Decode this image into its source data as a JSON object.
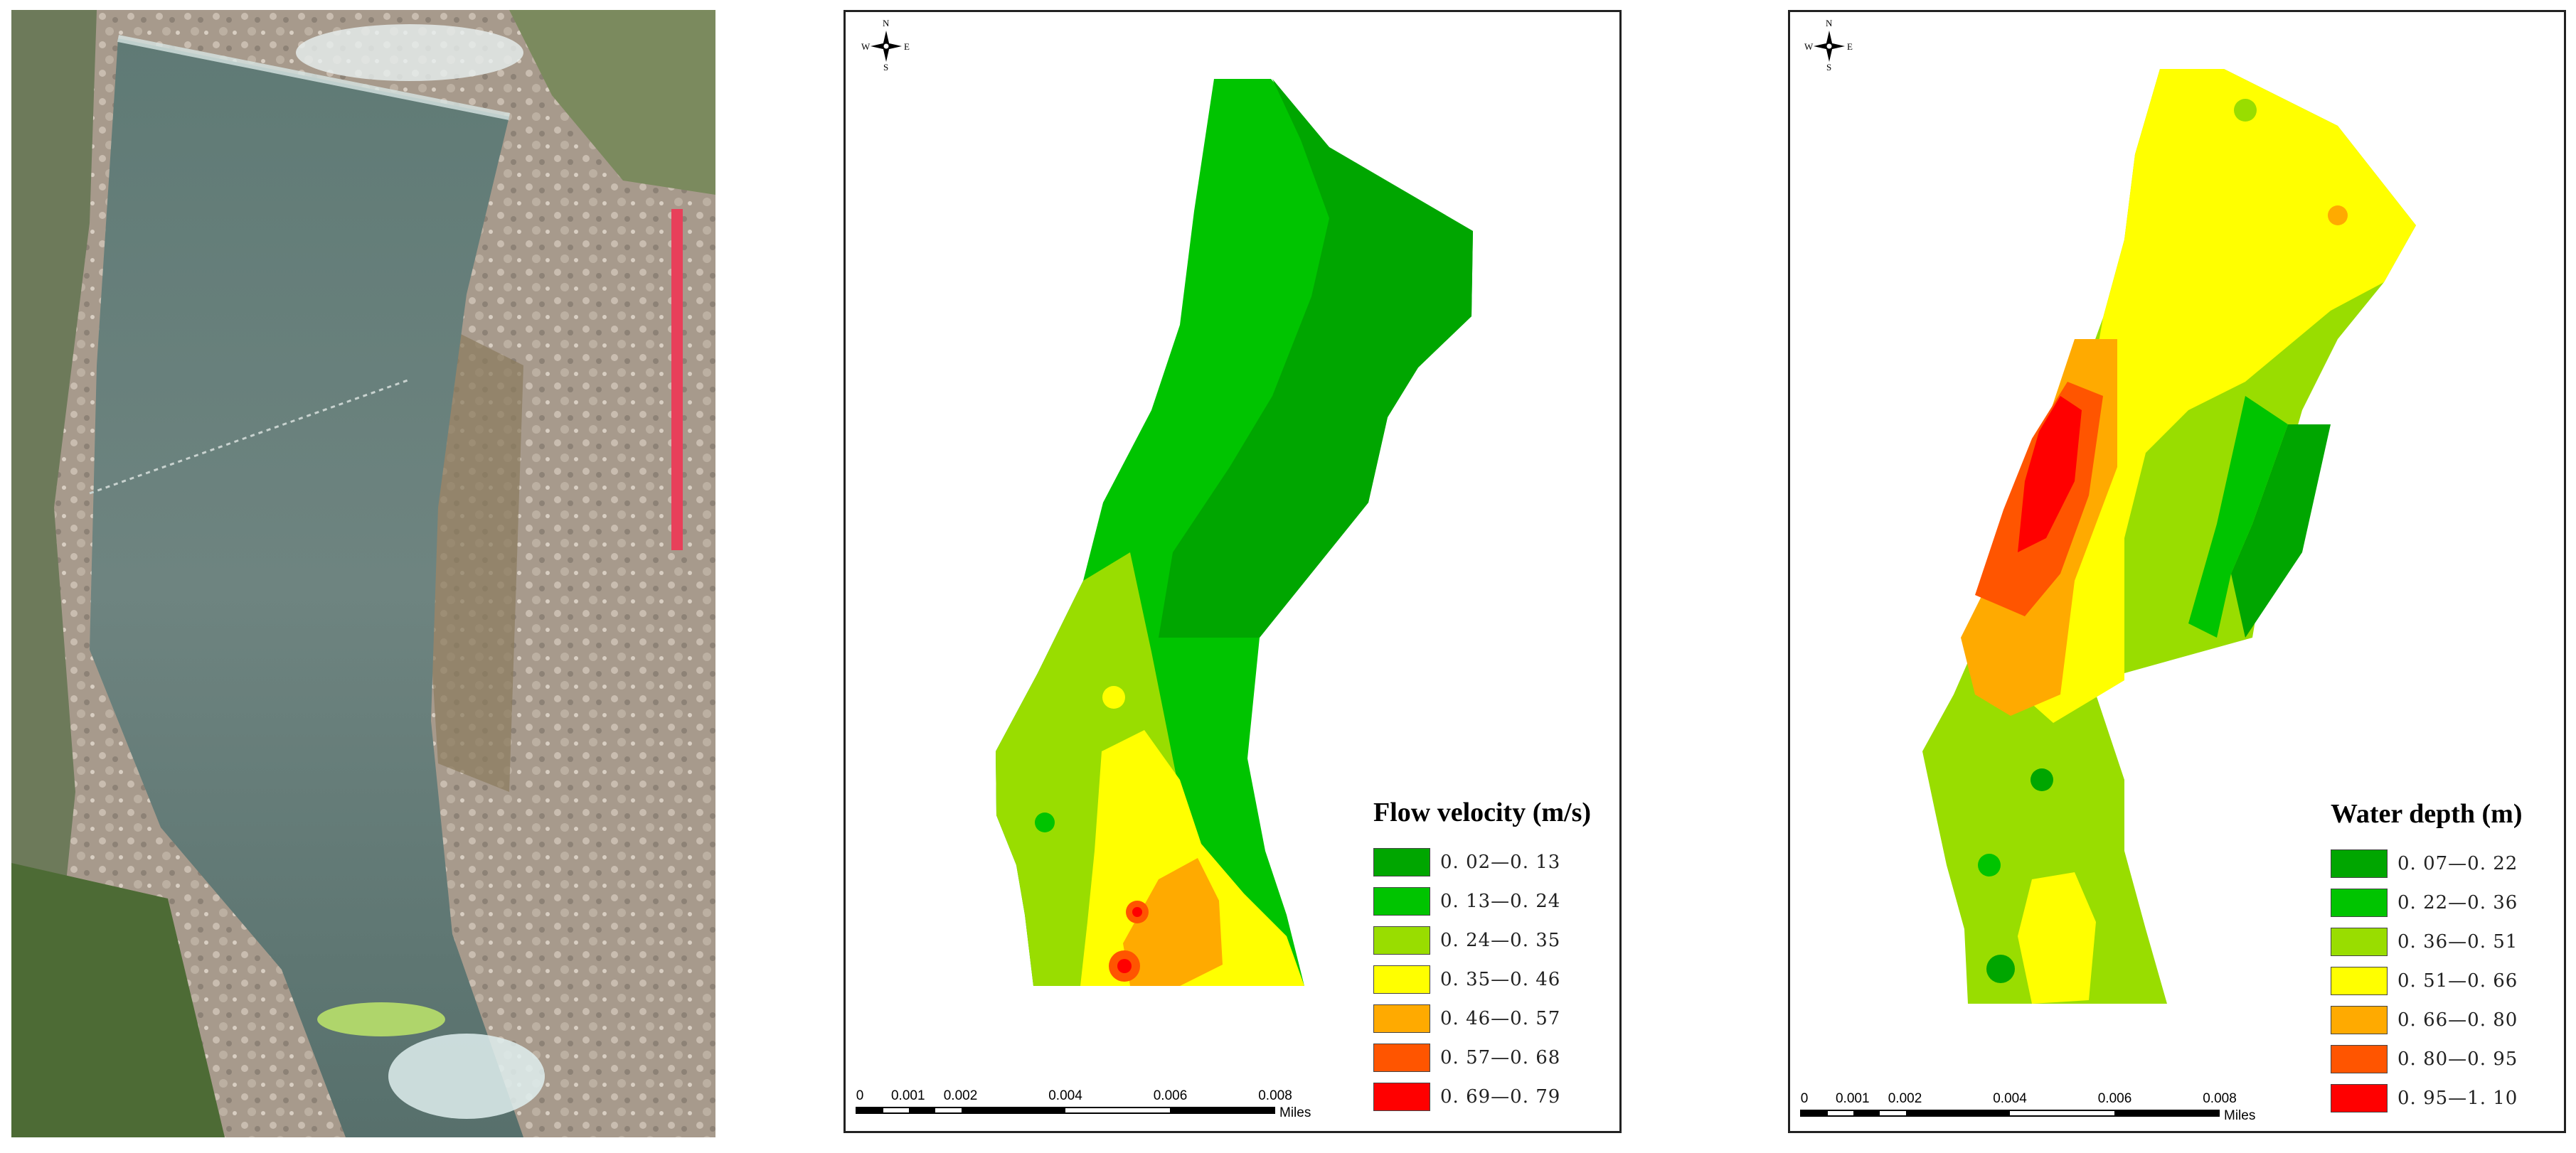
{
  "compass": {
    "n": "N",
    "s": "S",
    "w": "W",
    "e": "E"
  },
  "velocity_map": {
    "legend_title": "Flow velocity (m/s)",
    "classes": [
      {
        "label": "0. 02—0. 13",
        "color": "#00a600"
      },
      {
        "label": "0. 13—0. 24",
        "color": "#00c400"
      },
      {
        "label": "0. 24—0. 35",
        "color": "#99dd00"
      },
      {
        "label": "0. 35—0. 46",
        "color": "#ffff00"
      },
      {
        "label": "0. 46—0. 57",
        "color": "#ffaa00"
      },
      {
        "label": "0. 57—0. 68",
        "color": "#ff5500"
      },
      {
        "label": "0. 69—0. 79",
        "color": "#ff0000"
      }
    ]
  },
  "depth_map": {
    "legend_title": "Water depth (m)",
    "classes": [
      {
        "label": "0. 07—0. 22",
        "color": "#00a600"
      },
      {
        "label": "0. 22—0. 36",
        "color": "#00c400"
      },
      {
        "label": "0. 36—0. 51",
        "color": "#99dd00"
      },
      {
        "label": "0. 51—0. 66",
        "color": "#ffff00"
      },
      {
        "label": "0. 66—0. 80",
        "color": "#ffaa00"
      },
      {
        "label": "0. 80—0. 95",
        "color": "#ff5500"
      },
      {
        "label": "0. 95—1. 10",
        "color": "#ff0000"
      }
    ]
  },
  "scale_bar": {
    "ticks": [
      "0",
      "0.001",
      "0.002",
      "0.004",
      "0.006",
      "0.008"
    ],
    "unit": "Miles"
  }
}
